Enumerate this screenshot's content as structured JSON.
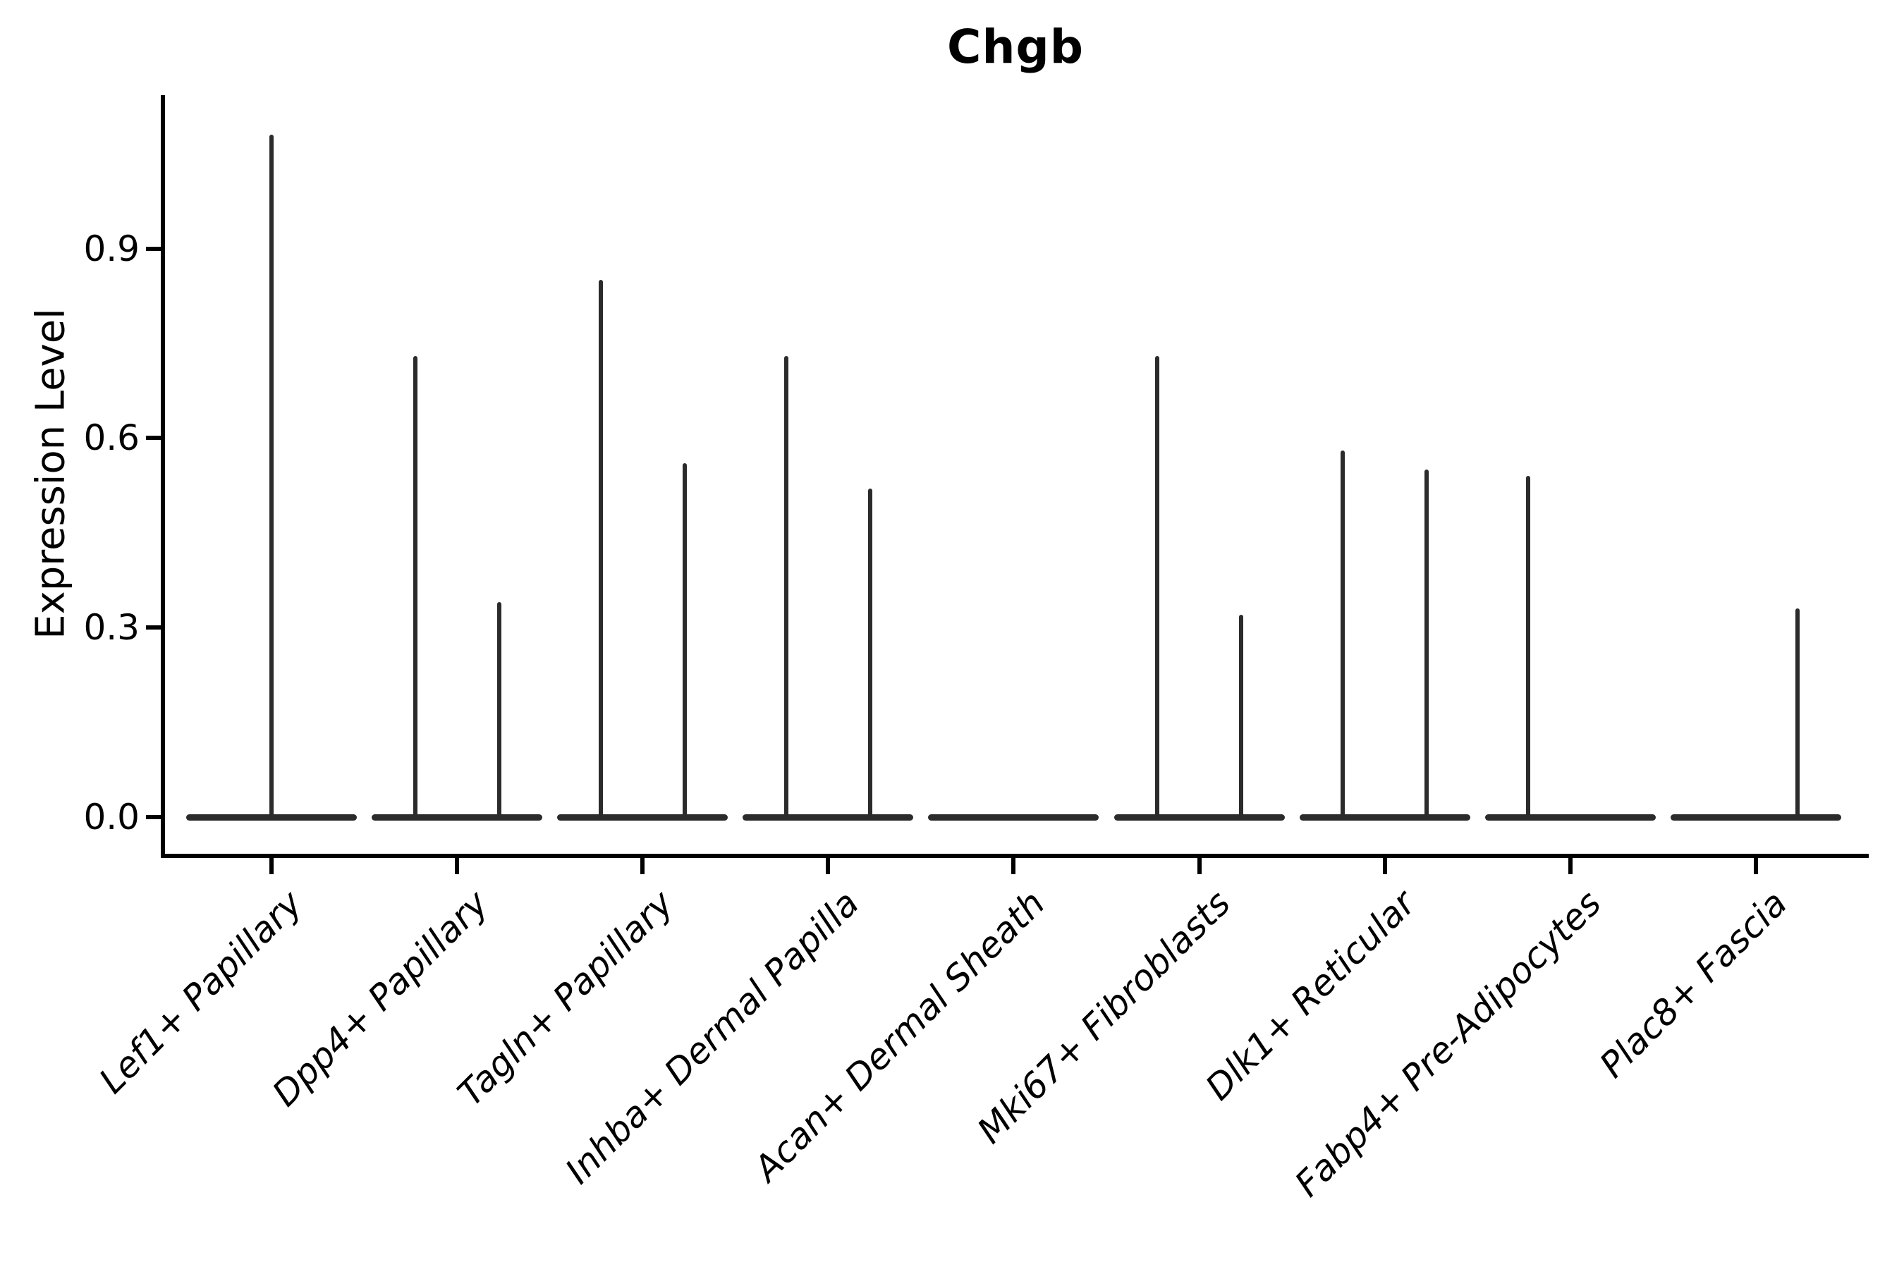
{
  "figure": {
    "title": "Chgb",
    "background_color": "#ffffff",
    "axis_color": "#000000",
    "violin_color": "#2b2b2b",
    "y_axis": {
      "label": "Expression Level",
      "tick_labels": [
        "0.0",
        "0.3",
        "0.6",
        "0.9"
      ],
      "tick_values": [
        0.0,
        0.3,
        0.6,
        0.9
      ]
    }
  },
  "chart_data": {
    "type": "violin",
    "title": "Chgb",
    "xlabel": "",
    "ylabel": "Expression Level",
    "ylim": [
      -0.1,
      1.14
    ],
    "yticks": [
      0.0,
      0.3,
      0.6,
      0.9
    ],
    "grid": false,
    "legend": "none",
    "description": "Violin plot of Chgb expression per fibroblast cell-type cluster; two grouped (dodged) violins per category where present. Nearly all cells are at 0 expression, so each violin collapses to a flat line at 0 with a thin spike reaching the maximum expressing cell.",
    "baseline_value": 0.0,
    "violins": [
      {
        "category": "Lef1+ Papillary",
        "spikes": [
          {
            "position": "center",
            "max": 1.08
          }
        ]
      },
      {
        "category": "Dpp4+ Papillary",
        "spikes": [
          {
            "position": "left",
            "max": 0.73
          },
          {
            "position": "right",
            "max": 0.34
          }
        ]
      },
      {
        "category": "Tagln+ Papillary",
        "spikes": [
          {
            "position": "left",
            "max": 0.85
          },
          {
            "position": "right",
            "max": 0.56
          }
        ]
      },
      {
        "category": "Inhba+ Dermal Papilla",
        "spikes": [
          {
            "position": "left",
            "max": 0.73
          },
          {
            "position": "right",
            "max": 0.52
          }
        ]
      },
      {
        "category": "Acan+ Dermal Sheath",
        "spikes": []
      },
      {
        "category": "Mki67+ Fibroblasts",
        "spikes": [
          {
            "position": "left",
            "max": 0.73
          },
          {
            "position": "right",
            "max": 0.32
          }
        ]
      },
      {
        "category": "Dlk1+ Reticular",
        "spikes": [
          {
            "position": "left",
            "max": 0.58
          },
          {
            "position": "right",
            "max": 0.55
          }
        ]
      },
      {
        "category": "Fabp4+ Pre-Adipocytes",
        "spikes": [
          {
            "position": "left",
            "max": 0.54
          }
        ]
      },
      {
        "category": "Plac8+ Fascia",
        "spikes": [
          {
            "position": "right",
            "max": 0.33
          }
        ]
      }
    ]
  }
}
